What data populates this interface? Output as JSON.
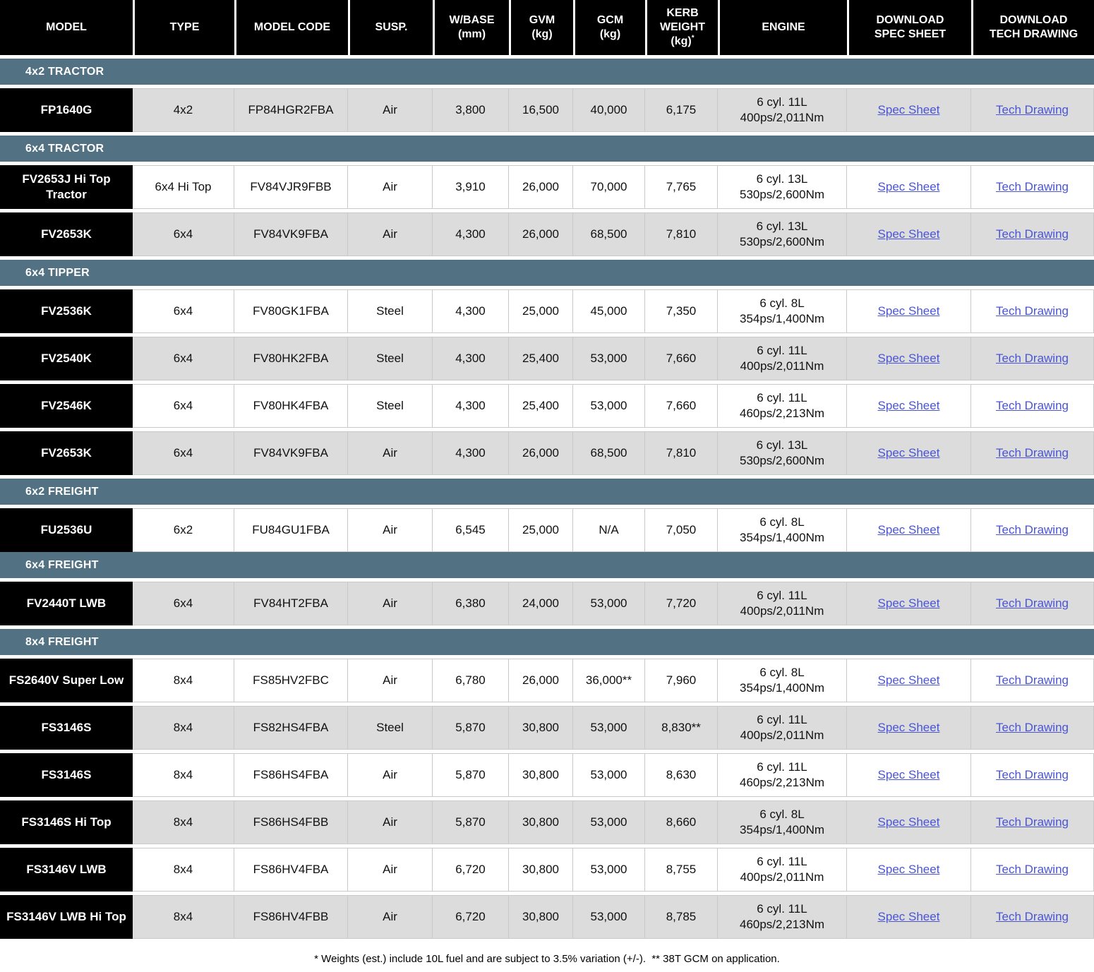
{
  "table": {
    "columns": [
      "MODEL",
      "TYPE",
      "MODEL CODE",
      "SUSP.",
      "W/BASE\n(mm)",
      "GVM\n(kg)",
      "GCM\n(kg)",
      "KERB\nWEIGHT\n(kg)",
      "ENGINE",
      "DOWNLOAD\nSPEC SHEET",
      "DOWNLOAD\nTECH DRAWING"
    ],
    "kerb_superscript": "*"
  },
  "links": {
    "spec_label": "Spec Sheet",
    "tech_label": "Tech Drawing"
  },
  "colors": {
    "header_bg": "#000000",
    "section_band_bg": "#527183",
    "shaded_row_bg": "#dcdcdc",
    "link": "#4a55d6"
  },
  "sections": [
    {
      "title": "4x2 TRACTOR",
      "rows": [
        {
          "model": "FP1640G",
          "type": "4x2",
          "code": "FP84HGR2FBA",
          "susp": "Air",
          "wbase": "3,800",
          "gvm": "16,500",
          "gcm": "40,000",
          "kerb": "6,175",
          "engine": "6 cyl. 11L\n400ps/2,011Nm"
        }
      ]
    },
    {
      "title": "6x4 TRACTOR",
      "rows": [
        {
          "model": "FV2653J Hi Top Tractor",
          "type": "6x4 Hi Top",
          "code": "FV84VJR9FBB",
          "susp": "Air",
          "wbase": "3,910",
          "gvm": "26,000",
          "gcm": "70,000",
          "kerb": "7,765",
          "engine": "6 cyl. 13L\n530ps/2,600Nm"
        },
        {
          "model": "FV2653K",
          "type": "6x4",
          "code": "FV84VK9FBA",
          "susp": "Air",
          "wbase": "4,300",
          "gvm": "26,000",
          "gcm": "68,500",
          "kerb": "7,810",
          "engine": "6 cyl. 13L\n530ps/2,600Nm"
        }
      ]
    },
    {
      "title": "6x4 TIPPER",
      "rows": [
        {
          "model": "FV2536K",
          "type": "6x4",
          "code": "FV80GK1FBA",
          "susp": "Steel",
          "wbase": "4,300",
          "gvm": "25,000",
          "gcm": "45,000",
          "kerb": "7,350",
          "engine": "6 cyl. 8L\n354ps/1,400Nm"
        },
        {
          "model": "FV2540K",
          "type": "6x4",
          "code": "FV80HK2FBA",
          "susp": "Steel",
          "wbase": "4,300",
          "gvm": "25,400",
          "gcm": "53,000",
          "kerb": "7,660",
          "engine": "6 cyl. 11L\n400ps/2,011Nm"
        },
        {
          "model": "FV2546K",
          "type": "6x4",
          "code": "FV80HK4FBA",
          "susp": "Steel",
          "wbase": "4,300",
          "gvm": "25,400",
          "gcm": "53,000",
          "kerb": "7,660",
          "engine": "6 cyl. 11L\n460ps/2,213Nm"
        },
        {
          "model": "FV2653K",
          "type": "6x4",
          "code": "FV84VK9FBA",
          "susp": "Air",
          "wbase": "4,300",
          "gvm": "26,000",
          "gcm": "68,500",
          "kerb": "7,810",
          "engine": "6 cyl. 13L\n530ps/2,600Nm"
        }
      ]
    },
    {
      "title": "6x2 FREIGHT",
      "rows": [
        {
          "model": "FU2536U",
          "type": "6x2",
          "code": "FU84GU1FBA",
          "susp": "Air",
          "wbase": "6,545",
          "gvm": "25,000",
          "gcm": "N/A",
          "kerb": "7,050",
          "engine": "6 cyl. 8L\n354ps/1,400Nm"
        }
      ]
    },
    {
      "title": "6x4 FREIGHT",
      "flush_top": true,
      "rows": [
        {
          "model": "FV2440T LWB",
          "type": "6x4",
          "code": "FV84HT2FBA",
          "susp": "Air",
          "wbase": "6,380",
          "gvm": "24,000",
          "gcm": "53,000",
          "kerb": "7,720",
          "engine": "6 cyl. 11L\n400ps/2,011Nm"
        }
      ]
    },
    {
      "title": "8x4 FREIGHT",
      "rows": [
        {
          "model": "FS2640V Super Low",
          "type": "8x4",
          "code": "FS85HV2FBC",
          "susp": "Air",
          "wbase": "6,780",
          "gvm": "26,000",
          "gcm": "36,000**",
          "kerb": "7,960",
          "engine": "6 cyl. 8L\n354ps/1,400Nm"
        },
        {
          "model": "FS3146S",
          "type": "8x4",
          "code": "FS82HS4FBA",
          "susp": "Steel",
          "wbase": "5,870",
          "gvm": "30,800",
          "gcm": "53,000",
          "kerb": "8,830**",
          "engine": "6 cyl. 11L\n400ps/2,011Nm"
        },
        {
          "model": "FS3146S",
          "type": "8x4",
          "code": "FS86HS4FBA",
          "susp": "Air",
          "wbase": "5,870",
          "gvm": "30,800",
          "gcm": "53,000",
          "kerb": "8,630",
          "engine": "6 cyl. 11L\n460ps/2,213Nm"
        },
        {
          "model": "FS3146S Hi Top",
          "type": "8x4",
          "code": "FS86HS4FBB",
          "susp": "Air",
          "wbase": "5,870",
          "gvm": "30,800",
          "gcm": "53,000",
          "kerb": "8,660",
          "engine": "6 cyl. 8L\n354ps/1,400Nm"
        },
        {
          "model": "FS3146V LWB",
          "type": "8x4",
          "code": "FS86HV4FBA",
          "susp": "Air",
          "wbase": "6,720",
          "gvm": "30,800",
          "gcm": "53,000",
          "kerb": "8,755",
          "engine": "6 cyl. 11L\n400ps/2,011Nm"
        },
        {
          "model": "FS3146V LWB Hi Top",
          "type": "8x4",
          "code": "FS86HV4FBB",
          "susp": "Air",
          "wbase": "6,720",
          "gvm": "30,800",
          "gcm": "53,000",
          "kerb": "8,785",
          "engine": "6 cyl. 11L\n460ps/2,213Nm"
        }
      ]
    }
  ],
  "footnote": "* Weights (est.) include 10L fuel and are subject to 3.5% variation (+/-).  ** 38T GCM on application."
}
